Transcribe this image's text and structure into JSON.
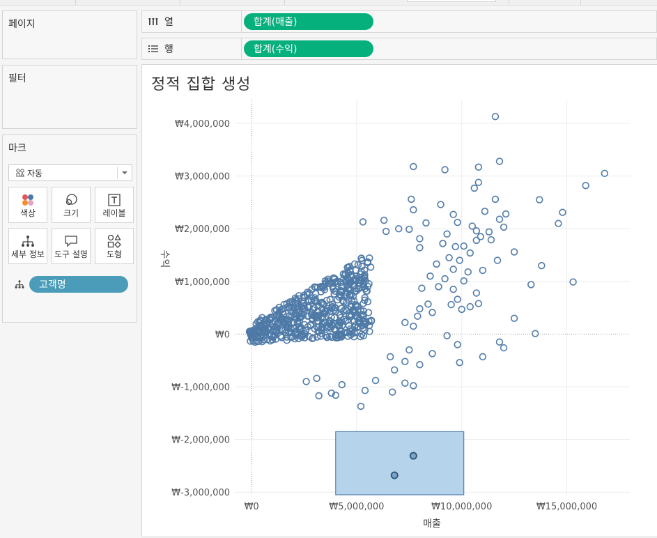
{
  "panels": {
    "pages": "페이지",
    "filters": "필터",
    "marks": "마크"
  },
  "shelves": {
    "columns": {
      "label": "열",
      "icon": "columns-icon",
      "pill": "합계(매출)"
    },
    "rows": {
      "label": "행",
      "icon": "rows-icon",
      "pill": "합계(수익)"
    }
  },
  "marks_card": {
    "mark_type": "자동",
    "buttons": [
      {
        "label": "색상",
        "icon": "color-icon"
      },
      {
        "label": "크기",
        "icon": "size-icon"
      },
      {
        "label": "레이블",
        "icon": "label-icon"
      },
      {
        "label": "세부 정보",
        "icon": "detail-icon"
      },
      {
        "label": "도구 설명",
        "icon": "tooltip-icon"
      },
      {
        "label": "도형",
        "icon": "shape-icon"
      }
    ],
    "detail_field": "고객명"
  },
  "colors": {
    "measure_pill": "#05b07c",
    "dimension_pill": "#4a9cb9",
    "mark": "#4e79a7",
    "selection_fill": "#b6d3ec",
    "selection_stroke": "#3f6f9f"
  },
  "chart_data": {
    "type": "scatter",
    "title": "정적 집합 생성",
    "xlabel": "매출",
    "ylabel": "수익",
    "xlim": [
      -800000,
      18000000
    ],
    "ylim": [
      -3050000,
      4450000
    ],
    "xticks": [
      0,
      5000000,
      10000000,
      15000000
    ],
    "xtick_labels": [
      "₩0",
      "₩5,000,000",
      "₩10,000,000",
      "₩15,000,000"
    ],
    "yticks": [
      4000000,
      3000000,
      2000000,
      1000000,
      0,
      -1000000,
      -2000000,
      -3000000
    ],
    "ytick_labels": [
      "₩4,000,000",
      "₩3,000,000",
      "₩2,000,000",
      "₩1,000,000",
      "₩0",
      "₩-1,000,000",
      "₩-2,000,000",
      "₩-3,000,000"
    ],
    "grid": true,
    "marker": "open-circle",
    "points": [
      [
        11600000,
        4130000
      ],
      [
        7700000,
        3180000
      ],
      [
        9200000,
        3120000
      ],
      [
        10800000,
        3170000
      ],
      [
        11800000,
        3280000
      ],
      [
        16800000,
        3050000
      ],
      [
        15900000,
        2820000
      ],
      [
        10600000,
        2770000
      ],
      [
        10800000,
        2880000
      ],
      [
        13700000,
        2550000
      ],
      [
        7600000,
        2560000
      ],
      [
        11600000,
        2560000
      ],
      [
        14800000,
        2310000
      ],
      [
        7700000,
        2360000
      ],
      [
        9000000,
        2460000
      ],
      [
        9600000,
        2270000
      ],
      [
        11100000,
        2330000
      ],
      [
        12100000,
        2280000
      ],
      [
        11800000,
        2180000
      ],
      [
        14600000,
        2100000
      ],
      [
        5300000,
        2130000
      ],
      [
        6300000,
        2160000
      ],
      [
        8300000,
        2110000
      ],
      [
        9800000,
        2120000
      ],
      [
        10500000,
        2050000
      ],
      [
        12000000,
        2030000
      ],
      [
        6400000,
        1950000
      ],
      [
        7000000,
        2000000
      ],
      [
        7500000,
        1990000
      ],
      [
        10700000,
        1960000
      ],
      [
        11300000,
        1940000
      ],
      [
        9300000,
        1900000
      ],
      [
        10900000,
        1850000
      ],
      [
        8000000,
        1810000
      ],
      [
        10700000,
        1780000
      ],
      [
        11400000,
        1790000
      ],
      [
        9100000,
        1720000
      ],
      [
        9700000,
        1660000
      ],
      [
        10100000,
        1670000
      ],
      [
        8000000,
        1640000
      ],
      [
        12500000,
        1560000
      ],
      [
        10400000,
        1540000
      ],
      [
        11700000,
        1400000
      ],
      [
        9400000,
        1450000
      ],
      [
        9900000,
        1400000
      ],
      [
        13800000,
        1300000
      ],
      [
        8800000,
        1330000
      ],
      [
        9600000,
        1230000
      ],
      [
        10300000,
        1180000
      ],
      [
        11000000,
        1210000
      ],
      [
        8500000,
        1100000
      ],
      [
        9200000,
        1050000
      ],
      [
        10100000,
        1010000
      ],
      [
        13300000,
        940000
      ],
      [
        15300000,
        990000
      ],
      [
        8100000,
        870000
      ],
      [
        8900000,
        900000
      ],
      [
        9600000,
        850000
      ],
      [
        10700000,
        780000
      ],
      [
        9800000,
        660000
      ],
      [
        8400000,
        570000
      ],
      [
        9500000,
        560000
      ],
      [
        10800000,
        580000
      ],
      [
        10400000,
        520000
      ],
      [
        8000000,
        480000
      ],
      [
        8600000,
        410000
      ],
      [
        10000000,
        470000
      ],
      [
        12500000,
        300000
      ],
      [
        7900000,
        340000
      ],
      [
        7300000,
        220000
      ],
      [
        7700000,
        150000
      ],
      [
        13500000,
        10000
      ],
      [
        9300000,
        -30000
      ],
      [
        9800000,
        -200000
      ],
      [
        11800000,
        -150000
      ],
      [
        12000000,
        -260000
      ],
      [
        11000000,
        -430000
      ],
      [
        7500000,
        -300000
      ],
      [
        8600000,
        -370000
      ],
      [
        9900000,
        -540000
      ],
      [
        8000000,
        -580000
      ],
      [
        6600000,
        -430000
      ],
      [
        7300000,
        -520000
      ],
      [
        6800000,
        -680000
      ],
      [
        7300000,
        -930000
      ],
      [
        7700000,
        -980000
      ],
      [
        5900000,
        -880000
      ],
      [
        5200000,
        -1370000
      ],
      [
        6700000,
        -1100000
      ],
      [
        4000000,
        -1160000
      ],
      [
        3200000,
        -1170000
      ],
      [
        3800000,
        -1120000
      ],
      [
        2600000,
        -900000
      ],
      [
        3100000,
        -840000
      ],
      [
        5400000,
        -1070000
      ],
      [
        4300000,
        -960000
      ],
      [
        7700000,
        -2310000
      ],
      [
        6800000,
        -2680000
      ]
    ],
    "selection": {
      "x": [
        4000000,
        10100000
      ],
      "y": [
        -3050000,
        -1850000
      ]
    }
  }
}
